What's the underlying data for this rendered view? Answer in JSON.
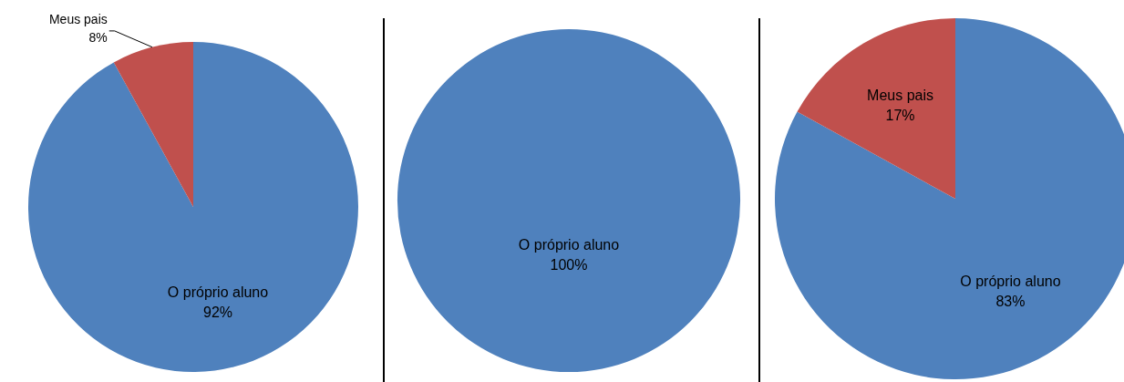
{
  "chart_data": [
    {
      "type": "pie",
      "categories": [
        "O próprio aluno",
        "Meus pais"
      ],
      "values": [
        92,
        8
      ],
      "colors": [
        "#4f81bd",
        "#c0504d"
      ],
      "value_labels": [
        "92%",
        "8%"
      ]
    },
    {
      "type": "pie",
      "categories": [
        "O próprio aluno"
      ],
      "values": [
        100
      ],
      "colors": [
        "#4f81bd"
      ],
      "value_labels": [
        "100%"
      ]
    },
    {
      "type": "pie",
      "categories": [
        "O próprio aluno",
        "Meus pais"
      ],
      "values": [
        83,
        17
      ],
      "colors": [
        "#4f81bd",
        "#c0504d"
      ],
      "value_labels": [
        "83%",
        "17%"
      ]
    }
  ]
}
